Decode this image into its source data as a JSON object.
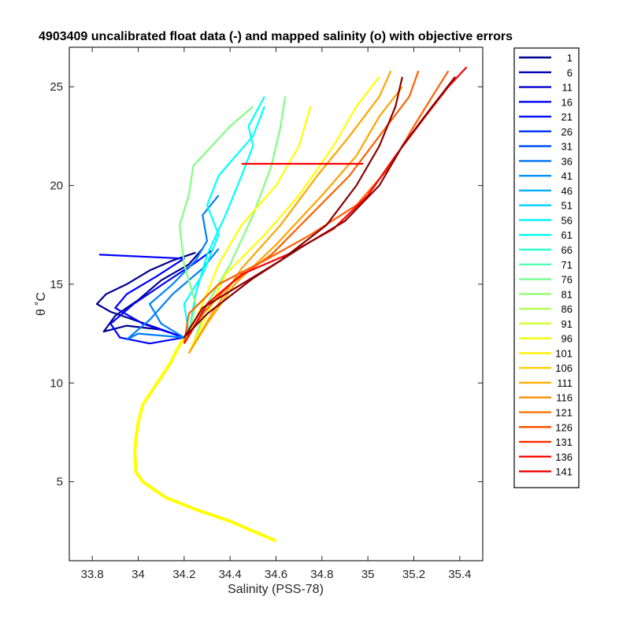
{
  "chart_data": {
    "type": "line",
    "title": "4903409 uncalibrated float data (-) and mapped salinity (o) with objective errors",
    "xlabel": "Salinity (PSS-78)",
    "ylabel": "θ ˚C",
    "xlim": [
      33.7,
      35.5
    ],
    "ylim": [
      1,
      27
    ],
    "xticks": [
      33.8,
      34,
      34.2,
      34.4,
      34.6,
      34.8,
      35,
      35.2,
      35.4
    ],
    "yticks": [
      5,
      10,
      15,
      20,
      25
    ],
    "grid": false,
    "legend_placement": "outside-right",
    "legend": [
      "1",
      "6",
      "11",
      "16",
      "21",
      "26",
      "31",
      "36",
      "41",
      "46",
      "51",
      "56",
      "61",
      "66",
      "71",
      "76",
      "81",
      "86",
      "91",
      "96",
      "101",
      "106",
      "111",
      "116",
      "121",
      "126",
      "131",
      "136",
      "141"
    ],
    "series_colors": [
      "#00008f",
      "#0000af",
      "#0000cf",
      "#0000ef",
      "#0010ff",
      "#0030ff",
      "#0050ff",
      "#0070ff",
      "#0090ff",
      "#00b0ff",
      "#00d0ff",
      "#00efff",
      "#10ffef",
      "#30ffcf",
      "#50ffaf",
      "#70ff8f",
      "#90ff70",
      "#b0ff50",
      "#cfff30",
      "#efff10",
      "#ffef00",
      "#ffcf00",
      "#ffb000",
      "#ff9000",
      "#ff7000",
      "#ff5000",
      "#ff3000",
      "#ff1000",
      "#ef0000"
    ],
    "profile_color_scale": [
      "#00008f",
      "#0000ff",
      "#0080ff",
      "#00ffff",
      "#80ff80",
      "#ffff00",
      "#ffa500",
      "#ff6000",
      "#ff0000",
      "#8b0000"
    ],
    "deep_curve": [
      [
        34.6,
        2.0
      ],
      [
        34.5,
        2.5
      ],
      [
        34.4,
        3.0
      ],
      [
        34.25,
        3.6
      ],
      [
        34.12,
        4.2
      ],
      [
        34.02,
        5.0
      ],
      [
        33.99,
        5.5
      ],
      [
        33.985,
        6.5
      ],
      [
        33.99,
        7.2
      ],
      [
        34.0,
        8.0
      ],
      [
        34.02,
        8.9
      ],
      [
        34.06,
        9.6
      ],
      [
        34.1,
        10.3
      ],
      [
        34.14,
        11.0
      ],
      [
        34.17,
        11.7
      ],
      [
        34.2,
        12.3
      ]
    ],
    "profiles": [
      {
        "name": "1",
        "points": [
          [
            34.2,
            12.3
          ],
          [
            34.08,
            12.8
          ],
          [
            33.98,
            13.2
          ],
          [
            33.88,
            13.6
          ],
          [
            33.82,
            14.0
          ],
          [
            33.86,
            14.5
          ],
          [
            33.95,
            15.0
          ],
          [
            34.05,
            15.7
          ],
          [
            34.15,
            16.2
          ],
          [
            34.25,
            16.6
          ]
        ]
      },
      {
        "name": "11",
        "points": [
          [
            34.2,
            12.3
          ],
          [
            34.1,
            12.7
          ],
          [
            33.95,
            12.9
          ],
          [
            33.85,
            12.6
          ],
          [
            33.9,
            13.4
          ],
          [
            34.0,
            14.2
          ],
          [
            34.1,
            15.2
          ],
          [
            34.22,
            16.0
          ],
          [
            34.28,
            16.8
          ]
        ]
      },
      {
        "name": "21",
        "points": [
          [
            34.2,
            12.3
          ],
          [
            34.05,
            12.0
          ],
          [
            33.92,
            12.3
          ],
          [
            33.88,
            13.0
          ],
          [
            33.98,
            14.0
          ],
          [
            34.12,
            15.1
          ],
          [
            34.25,
            16.1
          ],
          [
            34.32,
            16.7
          ]
        ]
      },
      {
        "name": "31",
        "points": [
          [
            34.2,
            12.3
          ],
          [
            34.02,
            13.0
          ],
          [
            33.9,
            13.8
          ],
          [
            33.95,
            14.5
          ],
          [
            34.08,
            15.4
          ],
          [
            34.2,
            16.3
          ],
          [
            33.83,
            16.5
          ]
        ]
      },
      {
        "name": "41",
        "points": [
          [
            34.2,
            12.3
          ],
          [
            34.0,
            12.5
          ],
          [
            33.95,
            12.2
          ],
          [
            34.05,
            13.2
          ],
          [
            34.15,
            14.5
          ],
          [
            34.28,
            15.8
          ],
          [
            34.35,
            16.8
          ]
        ]
      },
      {
        "name": "51",
        "points": [
          [
            34.2,
            12.3
          ],
          [
            34.1,
            13.0
          ],
          [
            34.05,
            14.0
          ],
          [
            34.15,
            15.0
          ],
          [
            34.25,
            16.2
          ],
          [
            34.3,
            17.2
          ],
          [
            34.28,
            18.5
          ],
          [
            34.35,
            19.5
          ]
        ]
      },
      {
        "name": "61",
        "points": [
          [
            34.22,
            12.5
          ],
          [
            34.2,
            14.0
          ],
          [
            34.28,
            15.5
          ],
          [
            34.35,
            17.5
          ],
          [
            34.3,
            19.0
          ],
          [
            34.35,
            20.5
          ],
          [
            34.5,
            22.5
          ],
          [
            34.55,
            24.0
          ]
        ]
      },
      {
        "name": "66",
        "points": [
          [
            34.22,
            12.5
          ],
          [
            34.25,
            14.5
          ],
          [
            34.3,
            16.5
          ],
          [
            34.38,
            18.5
          ],
          [
            34.45,
            20.5
          ],
          [
            34.5,
            22.0
          ],
          [
            34.48,
            23.0
          ],
          [
            34.55,
            24.5
          ]
        ]
      },
      {
        "name": "71",
        "points": [
          [
            34.22,
            12.5
          ],
          [
            34.25,
            14.0
          ],
          [
            34.2,
            16.0
          ],
          [
            34.18,
            18.0
          ],
          [
            34.22,
            19.5
          ],
          [
            34.24,
            21.0
          ],
          [
            34.4,
            23.0
          ],
          [
            34.5,
            24.0
          ]
        ]
      },
      {
        "name": "76",
        "points": [
          [
            34.24,
            12.0
          ],
          [
            34.3,
            14.0
          ],
          [
            34.4,
            16.0
          ],
          [
            34.5,
            18.5
          ],
          [
            34.58,
            21.0
          ],
          [
            34.62,
            23.0
          ],
          [
            34.64,
            24.5
          ]
        ]
      },
      {
        "name": "86",
        "points": [
          [
            34.2,
            12.0
          ],
          [
            34.28,
            14.0
          ],
          [
            34.35,
            16.0
          ],
          [
            34.45,
            18.0
          ],
          [
            34.6,
            20.0
          ],
          [
            34.7,
            22.0
          ],
          [
            34.75,
            24.0
          ]
        ]
      },
      {
        "name": "96",
        "points": [
          [
            34.22,
            11.5
          ],
          [
            34.3,
            13.5
          ],
          [
            34.38,
            15.5
          ],
          [
            34.55,
            17.5
          ],
          [
            34.7,
            19.5
          ],
          [
            34.85,
            22.0
          ],
          [
            34.95,
            24.0
          ],
          [
            35.05,
            25.5
          ]
        ]
      },
      {
        "name": "101",
        "points": [
          [
            34.22,
            11.5
          ],
          [
            34.32,
            13.5
          ],
          [
            34.45,
            15.8
          ],
          [
            34.62,
            18.0
          ],
          [
            34.78,
            20.5
          ],
          [
            34.92,
            22.5
          ],
          [
            35.05,
            24.5
          ],
          [
            35.1,
            25.8
          ]
        ]
      },
      {
        "name": "106",
        "points": [
          [
            34.22,
            11.5
          ],
          [
            34.3,
            13.0
          ],
          [
            34.42,
            15.0
          ],
          [
            34.6,
            17.0
          ],
          [
            34.8,
            19.5
          ],
          [
            34.95,
            21.5
          ],
          [
            35.05,
            23.5
          ],
          [
            35.15,
            25.0
          ]
        ]
      },
      {
        "name": "111",
        "points": [
          [
            34.2,
            12.0
          ],
          [
            34.28,
            13.5
          ],
          [
            34.4,
            15.0
          ],
          [
            34.58,
            16.5
          ],
          [
            34.75,
            18.5
          ],
          [
            34.92,
            20.5
          ],
          [
            35.05,
            22.5
          ],
          [
            35.18,
            24.5
          ],
          [
            35.22,
            25.8
          ]
        ]
      },
      {
        "name": "121",
        "points": [
          [
            34.2,
            12.0
          ],
          [
            34.22,
            13.5
          ],
          [
            34.35,
            15.0
          ],
          [
            34.55,
            16.2
          ],
          [
            34.75,
            17.5
          ],
          [
            34.95,
            19.0
          ],
          [
            35.1,
            21.0
          ],
          [
            35.2,
            23.0
          ],
          [
            35.28,
            24.5
          ],
          [
            35.35,
            25.8
          ]
        ]
      },
      {
        "name": "126",
        "points": [
          [
            34.45,
            21.1
          ],
          [
            34.6,
            21.1
          ],
          [
            34.8,
            21.1
          ],
          [
            34.98,
            21.1
          ]
        ]
      },
      {
        "name": "131",
        "points": [
          [
            34.2,
            12.0
          ],
          [
            34.3,
            14.0
          ],
          [
            34.45,
            15.5
          ],
          [
            34.65,
            16.5
          ],
          [
            34.85,
            17.8
          ],
          [
            35.0,
            19.5
          ],
          [
            35.12,
            21.5
          ],
          [
            35.25,
            23.5
          ],
          [
            35.35,
            25.0
          ],
          [
            35.43,
            26.0
          ]
        ]
      },
      {
        "name": "136",
        "points": [
          [
            34.2,
            12.3
          ],
          [
            34.3,
            13.5
          ],
          [
            34.5,
            15.3
          ],
          [
            34.7,
            16.8
          ],
          [
            34.9,
            18.2
          ],
          [
            35.05,
            20.0
          ],
          [
            35.15,
            22.0
          ],
          [
            35.28,
            24.0
          ],
          [
            35.38,
            25.5
          ]
        ]
      },
      {
        "name": "141",
        "points": [
          [
            34.2,
            12.3
          ],
          [
            34.28,
            13.8
          ],
          [
            34.45,
            15.0
          ],
          [
            34.62,
            16.2
          ],
          [
            34.82,
            18.0
          ],
          [
            34.95,
            20.0
          ],
          [
            35.05,
            22.0
          ],
          [
            35.12,
            24.0
          ],
          [
            35.15,
            25.5
          ]
        ]
      }
    ]
  }
}
